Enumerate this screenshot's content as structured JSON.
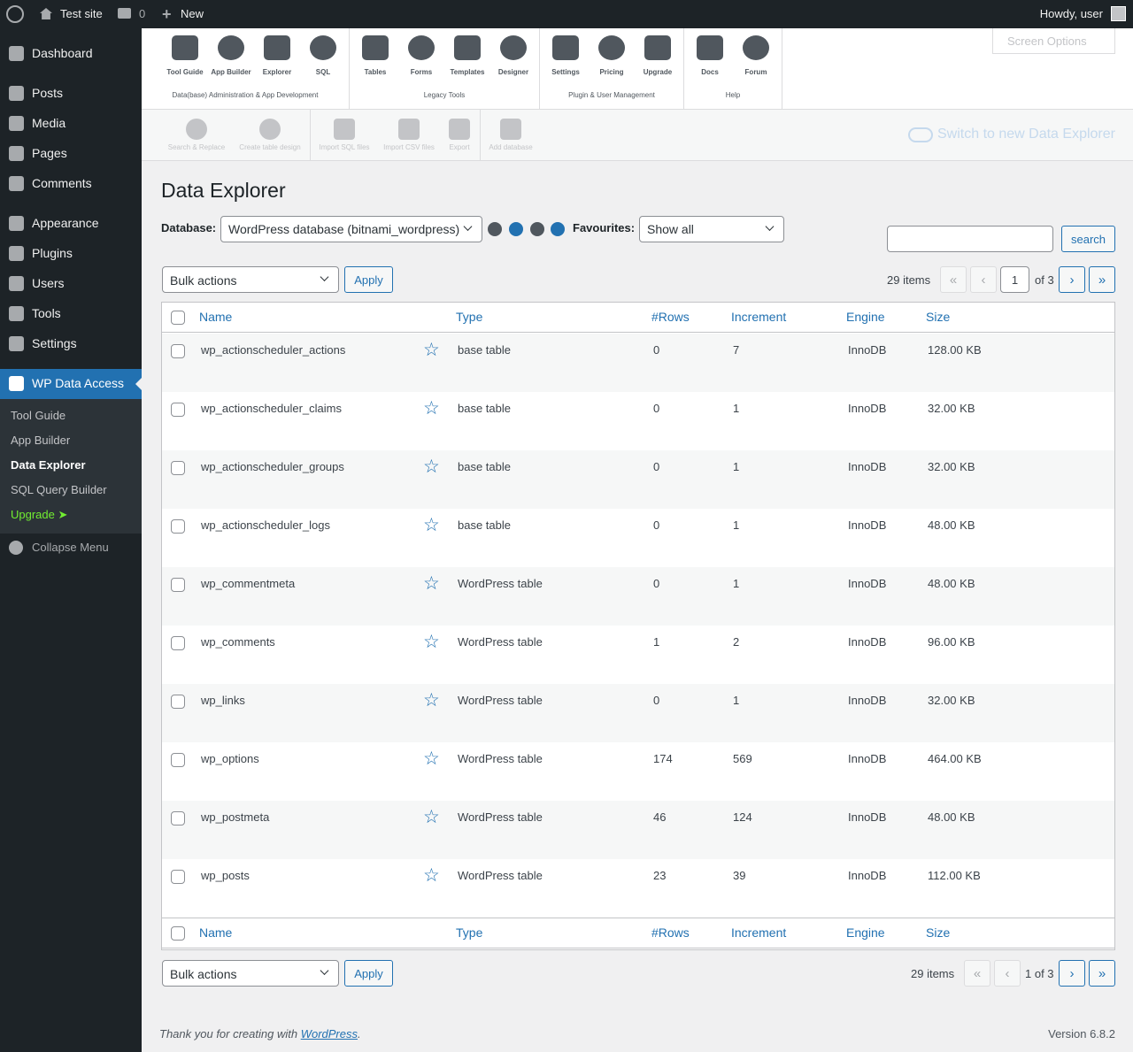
{
  "adminbar": {
    "site": "Test site",
    "comments": "0",
    "new": "New",
    "howdy": "Howdy, user"
  },
  "menu": {
    "items": [
      "Dashboard",
      "Posts",
      "Media",
      "Pages",
      "Comments",
      "Appearance",
      "Plugins",
      "Users",
      "Tools",
      "Settings",
      "WP Data Access"
    ],
    "submenu": [
      "Tool Guide",
      "App Builder",
      "Data Explorer",
      "SQL Query Builder",
      "Upgrade ➤"
    ],
    "collapse": "Collapse Menu"
  },
  "toolbar": {
    "groups": [
      {
        "label": "Data(base) Administration & App Development",
        "items": [
          "Tool Guide",
          "App Builder",
          "Explorer",
          "SQL"
        ]
      },
      {
        "label": "Legacy Tools",
        "items": [
          "Tables",
          "Forms",
          "Templates",
          "Designer"
        ]
      },
      {
        "label": "Plugin & User Management",
        "items": [
          "Settings",
          "Pricing",
          "Upgrade"
        ]
      },
      {
        "label": "Help",
        "items": [
          "Docs",
          "Forum"
        ]
      }
    ],
    "screen_options": "Screen Options",
    "secondary": [
      "Search & Replace",
      "Create table design",
      "Import SQL files",
      "Import CSV files",
      "Export",
      "Add database"
    ],
    "switch": "Switch to new Data Explorer"
  },
  "title": "Data Explorer",
  "filters": {
    "database_label": "Database:",
    "database": "WordPress database (bitnami_wordpress)",
    "favourites_label": "Favourites:",
    "favourites": "Show all",
    "search": "search"
  },
  "bulk": {
    "select": "Bulk actions",
    "apply": "Apply"
  },
  "pagination": {
    "items": "29 items",
    "page": "1",
    "of": "of 3",
    "bottom": "1 of 3",
    "buttons": [
      "«",
      "‹",
      "›",
      "»"
    ]
  },
  "table": {
    "columns": [
      "Name",
      "Type",
      "#Rows",
      "Increment",
      "Engine",
      "Size"
    ],
    "rows": [
      [
        "wp_actionscheduler_actions",
        "base table",
        "0",
        "7",
        "InnoDB",
        "128.00 KB"
      ],
      [
        "wp_actionscheduler_claims",
        "base table",
        "0",
        "1",
        "InnoDB",
        "32.00 KB"
      ],
      [
        "wp_actionscheduler_groups",
        "base table",
        "0",
        "1",
        "InnoDB",
        "32.00 KB"
      ],
      [
        "wp_actionscheduler_logs",
        "base table",
        "0",
        "1",
        "InnoDB",
        "48.00 KB"
      ],
      [
        "wp_commentmeta",
        "WordPress table",
        "0",
        "1",
        "InnoDB",
        "48.00 KB"
      ],
      [
        "wp_comments",
        "WordPress table",
        "1",
        "2",
        "InnoDB",
        "96.00 KB"
      ],
      [
        "wp_links",
        "WordPress table",
        "0",
        "1",
        "InnoDB",
        "32.00 KB"
      ],
      [
        "wp_options",
        "WordPress table",
        "174",
        "569",
        "InnoDB",
        "464.00 KB"
      ],
      [
        "wp_postmeta",
        "WordPress table",
        "46",
        "124",
        "InnoDB",
        "48.00 KB"
      ],
      [
        "wp_posts",
        "WordPress table",
        "23",
        "39",
        "InnoDB",
        "112.00 KB"
      ]
    ]
  },
  "footer": {
    "thanks": "Thank you for creating with ",
    "link": "WordPress",
    "dot": ".",
    "version": "Version 6.8.2"
  }
}
